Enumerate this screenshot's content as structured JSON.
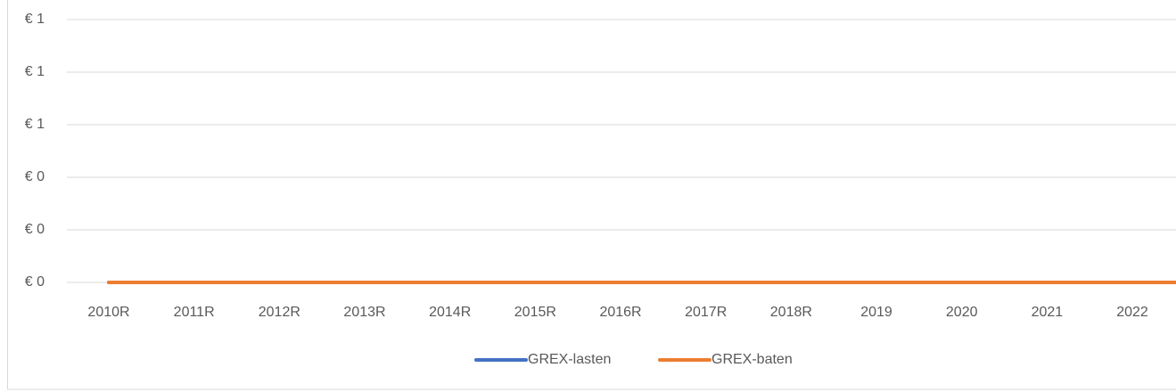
{
  "chart_data": {
    "type": "line",
    "categories": [
      "2010R",
      "2011R",
      "2012R",
      "2013R",
      "2014R",
      "2015R",
      "2016R",
      "2017R",
      "2018R",
      "2019",
      "2020",
      "2021",
      "2022",
      null
    ],
    "series": [
      {
        "name": "GREX-lasten",
        "color": "#4472c4",
        "values": [
          0,
          0,
          0,
          0,
          0,
          0,
          0,
          0,
          0,
          0,
          0,
          0,
          0,
          0
        ]
      },
      {
        "name": "GREX-baten",
        "color": "#ed7d31",
        "values": [
          0,
          0,
          0,
          0,
          0,
          0,
          0,
          0,
          0,
          0,
          0,
          0,
          0,
          0
        ]
      }
    ],
    "ylim": [
      0,
      1
    ],
    "yticks": [
      {
        "value": 0,
        "label": "€ 0"
      },
      {
        "value": 0.2,
        "label": "€ 0"
      },
      {
        "value": 0.4,
        "label": "€ 0"
      },
      {
        "value": 0.6,
        "label": "€ 1"
      },
      {
        "value": 0.8,
        "label": "€ 1"
      },
      {
        "value": 1,
        "label": "€ 1"
      }
    ],
    "grid": true,
    "legend": "bottom"
  }
}
